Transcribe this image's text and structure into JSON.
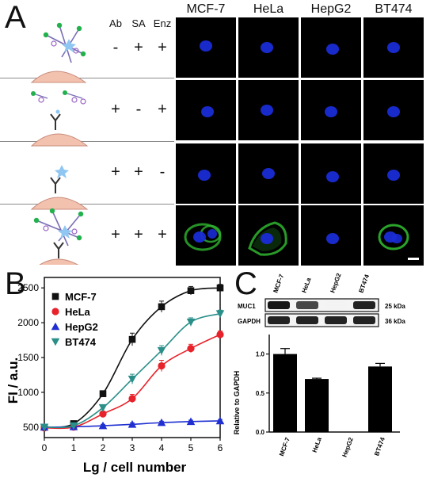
{
  "panels": {
    "a": "A",
    "b": "B",
    "c": "C"
  },
  "panel_a": {
    "condition_headers": [
      "Ab",
      "SA",
      "Enz"
    ],
    "cell_lines": [
      "MCF-7",
      "HeLa",
      "HepG2",
      "BT474"
    ],
    "rows": [
      {
        "signs": [
          "-",
          "+",
          "+"
        ],
        "membrane_stain": [
          false,
          false,
          false,
          false
        ]
      },
      {
        "signs": [
          "+",
          "-",
          "+"
        ],
        "membrane_stain": [
          false,
          false,
          false,
          false
        ]
      },
      {
        "signs": [
          "+",
          "+",
          "-"
        ],
        "membrane_stain": [
          false,
          false,
          false,
          false
        ]
      },
      {
        "signs": [
          "+",
          "+",
          "+"
        ],
        "membrane_stain": [
          true,
          true,
          false,
          true
        ]
      }
    ],
    "colors": {
      "nucleus": "#1a2cd6",
      "membrane": "#2fb52f"
    }
  },
  "chart_data": [
    {
      "type": "line",
      "panel": "B",
      "xlabel": "Lg / cell number",
      "ylabel": "FI / a.u.",
      "xlim": [
        0,
        6
      ],
      "ylim": [
        350,
        2650
      ],
      "x_ticks": [
        0,
        1,
        2,
        3,
        4,
        5,
        6
      ],
      "y_ticks": [
        500,
        1000,
        1500,
        2000,
        2500
      ],
      "legend_position": "top-left",
      "x": [
        0,
        1,
        2,
        3,
        4,
        5,
        6
      ],
      "series": [
        {
          "name": "MCF-7",
          "marker": "square",
          "color": "#111111",
          "values": [
            500,
            550,
            980,
            1760,
            2230,
            2460,
            2500
          ],
          "errors": [
            40,
            40,
            40,
            90,
            80,
            60,
            50
          ]
        },
        {
          "name": "HeLa",
          "marker": "circle",
          "color": "#e8222a",
          "values": [
            490,
            500,
            690,
            910,
            1380,
            1630,
            1830
          ],
          "errors": [
            30,
            30,
            30,
            60,
            80,
            60,
            50
          ]
        },
        {
          "name": "HepG2",
          "marker": "triangle",
          "color": "#1f2fd1",
          "values": [
            500,
            505,
            520,
            540,
            565,
            580,
            590
          ],
          "errors": [
            20,
            20,
            20,
            20,
            20,
            20,
            20
          ]
        },
        {
          "name": "BT474",
          "marker": "triangle-down",
          "color": "#2a8f88",
          "values": [
            500,
            520,
            780,
            1190,
            1600,
            2010,
            2130
          ],
          "errors": [
            30,
            30,
            40,
            70,
            70,
            60,
            50
          ]
        }
      ]
    },
    {
      "type": "bar",
      "panel": "C",
      "ylabel": "Relative to GAPDH",
      "ylim": [
        0,
        1.25
      ],
      "y_ticks": [
        "0.0",
        "0.5",
        "1.0"
      ],
      "categories": [
        "MCF-7",
        "HeLa",
        "HepG2",
        "BT474"
      ],
      "values": [
        1.0,
        0.68,
        0.0,
        0.84
      ],
      "errors": [
        0.07,
        0.01,
        0.0,
        0.04
      ],
      "blot": {
        "rows": [
          {
            "label": "MUC1",
            "kda": "25 kDa",
            "intensity": [
              0.95,
              0.75,
              0.05,
              0.9
            ]
          },
          {
            "label": "GAPDH",
            "kda": "36 kDa",
            "intensity": [
              0.9,
              0.9,
              0.9,
              0.9
            ]
          }
        ]
      }
    }
  ]
}
